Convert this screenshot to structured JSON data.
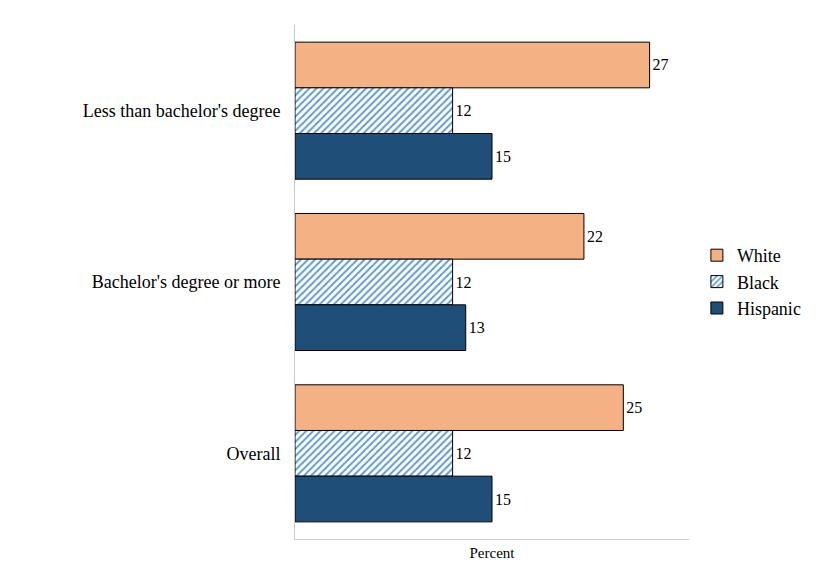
{
  "chart_data": {
    "type": "bar",
    "orientation": "horizontal",
    "categories": [
      "Less than bachelor's degree",
      "Bachelor's degree or more",
      "Overall"
    ],
    "series": [
      {
        "name": "White",
        "color": "#F4B183",
        "values": [
          27,
          22,
          25
        ]
      },
      {
        "name": "Black",
        "color": "#5B9BD5",
        "marker": "hatch",
        "values": [
          12,
          12,
          12
        ]
      },
      {
        "name": "Hispanic",
        "color": "#1F4E79",
        "values": [
          15,
          13,
          15
        ]
      }
    ],
    "x_label": "Percent",
    "xlim": [
      0,
      30
    ],
    "xticks": [],
    "data_labels": true,
    "tick_labels": "y",
    "legend": "right",
    "grid": false
  }
}
